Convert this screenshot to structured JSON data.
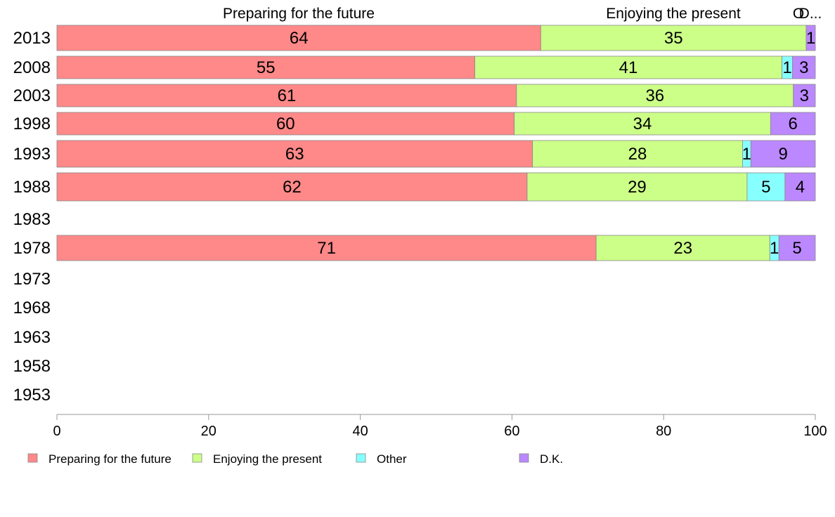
{
  "chart_data": {
    "type": "bar",
    "orientation": "horizontal",
    "stacked": true,
    "categories": [
      "2013",
      "2008",
      "2003",
      "1998",
      "1993",
      "1988",
      "1983",
      "1978",
      "1973",
      "1968",
      "1963",
      "1958",
      "1953"
    ],
    "series": [
      {
        "name": "Preparing for the future",
        "color": "#ff8888",
        "values": [
          63.8,
          55.1,
          60.6,
          60.3,
          62.7,
          62.0,
          null,
          71.1,
          null,
          null,
          null,
          null,
          null
        ],
        "labels": [
          "64",
          "55",
          "61",
          "60",
          "63",
          "62",
          "",
          "71",
          "",
          "",
          "",
          "",
          ""
        ]
      },
      {
        "name": "Enjoying the present",
        "color": "#ccff88",
        "values": [
          35.0,
          40.5,
          36.5,
          33.8,
          27.7,
          29.0,
          null,
          22.9,
          null,
          null,
          null,
          null,
          null
        ],
        "labels": [
          "35",
          "41",
          "36",
          "34",
          "28",
          "29",
          "",
          "23",
          "",
          "",
          "",
          "",
          ""
        ]
      },
      {
        "name": "Other",
        "color": "#88ffff",
        "values": [
          0.0,
          1.4,
          0.0,
          0.0,
          1.1,
          5.0,
          null,
          1.2,
          null,
          null,
          null,
          null,
          null
        ],
        "labels": [
          "",
          "1",
          "",
          "",
          "1",
          "5",
          "",
          "1",
          "",
          "",
          "",
          "",
          ""
        ]
      },
      {
        "name": "D.K.",
        "color": "#bb88ff",
        "values": [
          1.2,
          3.0,
          2.9,
          5.9,
          8.5,
          4.0,
          null,
          4.8,
          null,
          null,
          null,
          null,
          null
        ],
        "labels": [
          "1",
          "3",
          "3",
          "6",
          "9",
          "4",
          "",
          "5",
          "",
          "",
          "",
          "",
          ""
        ]
      }
    ],
    "top_labels": [
      "Preparing for the future",
      "Enjoying the present",
      "O",
      "D..."
    ],
    "xlim": [
      0,
      100
    ],
    "xticks": [
      "0",
      "20",
      "40",
      "60",
      "80",
      "100"
    ],
    "legend": {
      "position": "bottom-left",
      "entries": [
        "Preparing for the future",
        "Enjoying the present",
        "Other",
        "D.K."
      ]
    }
  }
}
